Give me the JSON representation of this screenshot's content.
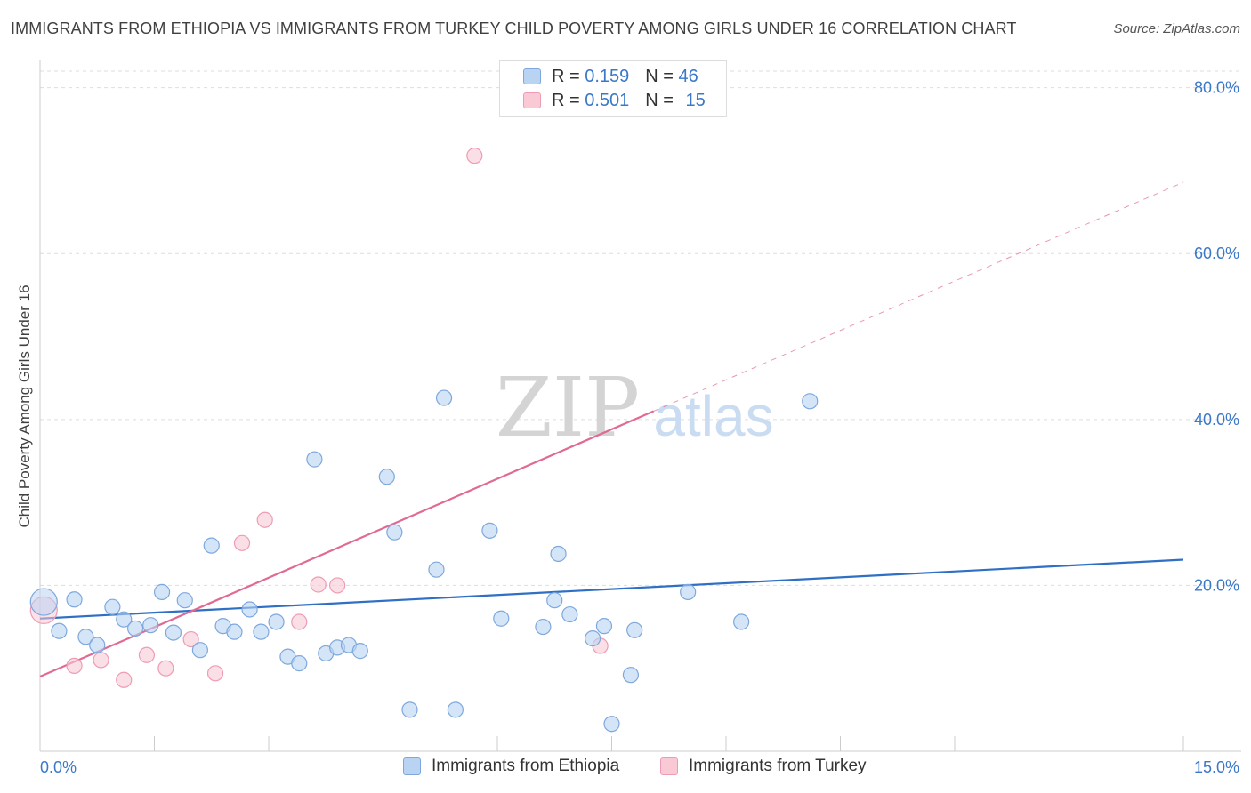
{
  "title": "IMMIGRANTS FROM ETHIOPIA VS IMMIGRANTS FROM TURKEY CHILD POVERTY AMONG GIRLS UNDER 16 CORRELATION CHART",
  "source": "Source: ZipAtlas.com",
  "watermark": {
    "zip": "ZIP",
    "atlas": "atlas"
  },
  "legend": {
    "r_label": "R =",
    "n_label": "N =",
    "ethiopia": {
      "r": "0.159",
      "n": "46"
    },
    "turkey": {
      "r": "0.501",
      "n": "15"
    }
  },
  "colors": {
    "ethiopia_fill": "#b9d3f3",
    "ethiopia_stroke": "#7ea8dd",
    "ethiopia_line": "#2f6fc4",
    "turkey_fill": "#f9c9d6",
    "turkey_stroke": "#ee9cb3",
    "turkey_line": "#e06a93",
    "axis_text": "#3a78c9",
    "grid": "#dddddd"
  },
  "chart_data": {
    "type": "scatter",
    "title": "IMMIGRANTS FROM ETHIOPIA VS IMMIGRANTS FROM TURKEY CHILD POVERTY AMONG GIRLS UNDER 16 CORRELATION CHART",
    "xlabel": "",
    "ylabel": "Child Poverty Among Girls Under 16",
    "xlim": [
      0,
      15
    ],
    "ylim": [
      0,
      82
    ],
    "x_tick_labels": [
      "0.0%",
      "15.0%"
    ],
    "y_ticks": [
      20,
      40,
      60,
      80
    ],
    "y_tick_labels": [
      "20.0%",
      "40.0%",
      "60.0%",
      "80.0%"
    ],
    "grid": true,
    "legend_position": "bottom",
    "series": [
      {
        "name": "Immigrants from Ethiopia",
        "points": [
          [
            0.05,
            18.0
          ],
          [
            0.25,
            14.5
          ],
          [
            0.45,
            18.3
          ],
          [
            0.6,
            13.8
          ],
          [
            0.75,
            12.8
          ],
          [
            0.95,
            17.4
          ],
          [
            1.1,
            15.9
          ],
          [
            1.25,
            14.8
          ],
          [
            1.45,
            15.2
          ],
          [
            1.6,
            19.2
          ],
          [
            1.75,
            14.3
          ],
          [
            1.9,
            18.2
          ],
          [
            2.1,
            12.2
          ],
          [
            2.25,
            24.8
          ],
          [
            2.4,
            15.1
          ],
          [
            2.55,
            14.4
          ],
          [
            2.75,
            17.1
          ],
          [
            2.9,
            14.4
          ],
          [
            3.1,
            15.6
          ],
          [
            3.25,
            11.4
          ],
          [
            3.4,
            10.6
          ],
          [
            3.6,
            35.2
          ],
          [
            3.75,
            11.8
          ],
          [
            3.9,
            12.5
          ],
          [
            4.05,
            12.8
          ],
          [
            4.2,
            12.1
          ],
          [
            4.55,
            33.1
          ],
          [
            4.65,
            26.4
          ],
          [
            4.85,
            5.0
          ],
          [
            5.2,
            21.9
          ],
          [
            5.3,
            42.6
          ],
          [
            5.45,
            5.0
          ],
          [
            5.9,
            26.6
          ],
          [
            6.05,
            16.0
          ],
          [
            6.6,
            15.0
          ],
          [
            6.75,
            18.2
          ],
          [
            6.8,
            23.8
          ],
          [
            6.95,
            16.5
          ],
          [
            7.25,
            13.6
          ],
          [
            7.4,
            15.1
          ],
          [
            7.5,
            3.3
          ],
          [
            7.75,
            9.2
          ],
          [
            7.8,
            14.6
          ],
          [
            8.5,
            19.2
          ],
          [
            9.2,
            15.6
          ],
          [
            10.1,
            42.2
          ]
        ],
        "trend": {
          "x": [
            0,
            15
          ],
          "y": [
            16.0,
            23.1
          ]
        }
      },
      {
        "name": "Immigrants from Turkey",
        "points": [
          [
            0.05,
            17.0
          ],
          [
            0.45,
            10.3
          ],
          [
            0.8,
            11.0
          ],
          [
            1.1,
            8.6
          ],
          [
            1.4,
            11.6
          ],
          [
            1.65,
            10.0
          ],
          [
            1.98,
            13.5
          ],
          [
            2.3,
            9.4
          ],
          [
            2.65,
            25.1
          ],
          [
            2.95,
            27.9
          ],
          [
            3.4,
            15.6
          ],
          [
            3.65,
            20.1
          ],
          [
            3.9,
            20.0
          ],
          [
            5.7,
            71.8
          ],
          [
            7.35,
            12.7
          ]
        ],
        "trend": {
          "x": [
            0,
            8.05
          ],
          "y": [
            9.0,
            41.0
          ],
          "dashed_extension": {
            "x": [
              8.05,
              15.0
            ],
            "y": [
              41.0,
              68.6
            ]
          }
        }
      }
    ]
  },
  "bottom_legend": {
    "ethiopia": "Immigrants from Ethiopia",
    "turkey": "Immigrants from Turkey"
  }
}
